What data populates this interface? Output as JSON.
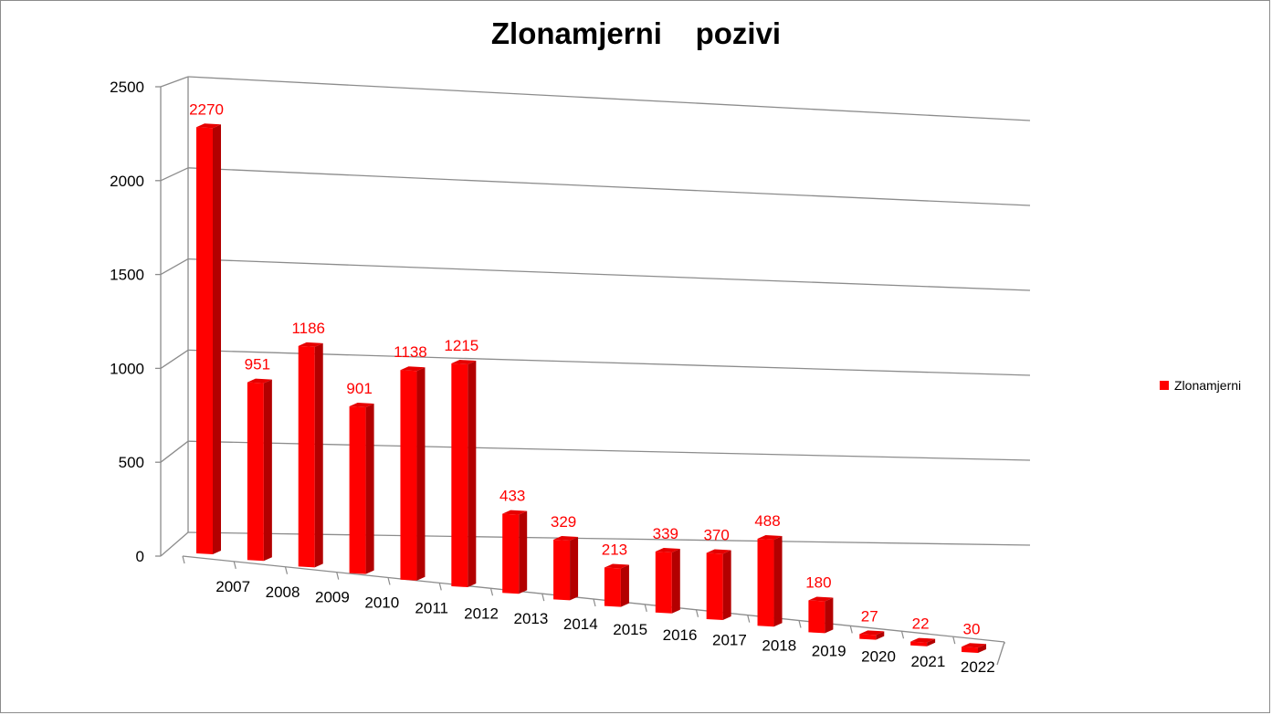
{
  "chart_data": {
    "type": "bar",
    "title": "Zlonamjerni    pozivi",
    "categories": [
      "2007",
      "2008",
      "2009",
      "2010",
      "2011",
      "2012",
      "2013",
      "2014",
      "2015",
      "2016",
      "2017",
      "2018",
      "2019",
      "2020",
      "2021",
      "2022"
    ],
    "series": [
      {
        "name": "Zlonamjerni",
        "values": [
          2270,
          951,
          1186,
          901,
          1138,
          1215,
          433,
          329,
          213,
          339,
          370,
          488,
          180,
          27,
          22,
          30
        ]
      }
    ],
    "ylim": [
      0,
      2500
    ],
    "yticks": [
      "0",
      "500",
      "1000",
      "1500",
      "2000",
      "2500"
    ],
    "grid": true,
    "legend_position": "right",
    "colors": {
      "bar": "#ff0000",
      "bar_side": "#b30000",
      "bar_top": "#e60000",
      "label": "#ff0000",
      "grid": "#8c8c8c"
    }
  }
}
